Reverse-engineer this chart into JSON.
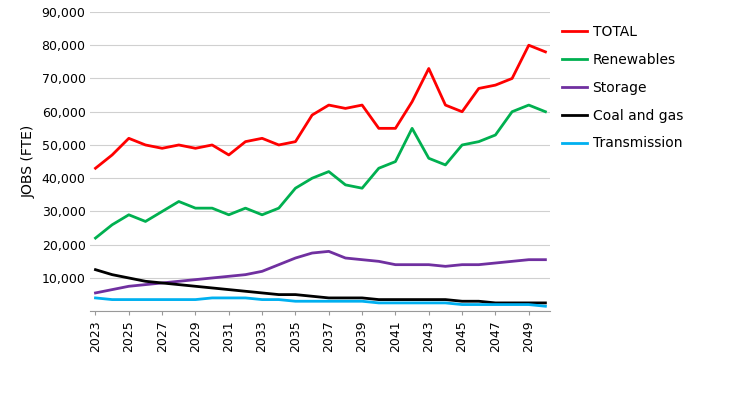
{
  "years": [
    2023,
    2024,
    2025,
    2026,
    2027,
    2028,
    2029,
    2030,
    2031,
    2032,
    2033,
    2034,
    2035,
    2036,
    2037,
    2038,
    2039,
    2040,
    2041,
    2042,
    2043,
    2044,
    2045,
    2046,
    2047,
    2048,
    2049,
    2050
  ],
  "total": [
    43000,
    47000,
    52000,
    50000,
    49000,
    50000,
    49000,
    50000,
    47000,
    51000,
    52000,
    50000,
    51000,
    59000,
    62000,
    61000,
    62000,
    55000,
    55000,
    63000,
    73000,
    62000,
    60000,
    67000,
    68000,
    70000,
    80000,
    78000
  ],
  "renewables": [
    22000,
    26000,
    29000,
    27000,
    30000,
    33000,
    31000,
    31000,
    29000,
    31000,
    29000,
    31000,
    37000,
    40000,
    42000,
    38000,
    37000,
    43000,
    45000,
    55000,
    46000,
    44000,
    50000,
    51000,
    53000,
    60000,
    62000,
    60000
  ],
  "storage": [
    5500,
    6500,
    7500,
    8000,
    8500,
    9000,
    9500,
    10000,
    10500,
    11000,
    12000,
    14000,
    16000,
    17500,
    18000,
    16000,
    15500,
    15000,
    14000,
    14000,
    14000,
    13500,
    14000,
    14000,
    14500,
    15000,
    15500,
    15500
  ],
  "coal_and_gas": [
    12500,
    11000,
    10000,
    9000,
    8500,
    8000,
    7500,
    7000,
    6500,
    6000,
    5500,
    5000,
    5000,
    4500,
    4000,
    4000,
    4000,
    3500,
    3500,
    3500,
    3500,
    3500,
    3000,
    3000,
    2500,
    2500,
    2500,
    2500
  ],
  "transmission": [
    4000,
    3500,
    3500,
    3500,
    3500,
    3500,
    3500,
    4000,
    4000,
    4000,
    3500,
    3500,
    3000,
    3000,
    3000,
    3000,
    3000,
    2500,
    2500,
    2500,
    2500,
    2500,
    2000,
    2000,
    2000,
    2000,
    2000,
    1500
  ],
  "colors": {
    "total": "#ff0000",
    "renewables": "#00b050",
    "storage": "#7030a0",
    "coal_and_gas": "#000000",
    "transmission": "#00b0f0"
  },
  "ylabel": "JOBS (FTE)",
  "ylim": [
    0,
    90000
  ],
  "yticks": [
    0,
    10000,
    20000,
    30000,
    40000,
    50000,
    60000,
    70000,
    80000,
    90000
  ],
  "ytick_labels": [
    "",
    "10,000",
    "20,000",
    "30,000",
    "40,000",
    "50,000",
    "60,000",
    "70,000",
    "80,000",
    "90,000"
  ],
  "xtick_years": [
    2023,
    2025,
    2027,
    2029,
    2031,
    2033,
    2035,
    2037,
    2039,
    2041,
    2043,
    2045,
    2047,
    2049
  ],
  "legend_labels": [
    "TOTAL",
    "Renewables",
    "Storage",
    "Coal and gas",
    "Transmission"
  ],
  "background_color": "#ffffff",
  "line_width": 2.0
}
